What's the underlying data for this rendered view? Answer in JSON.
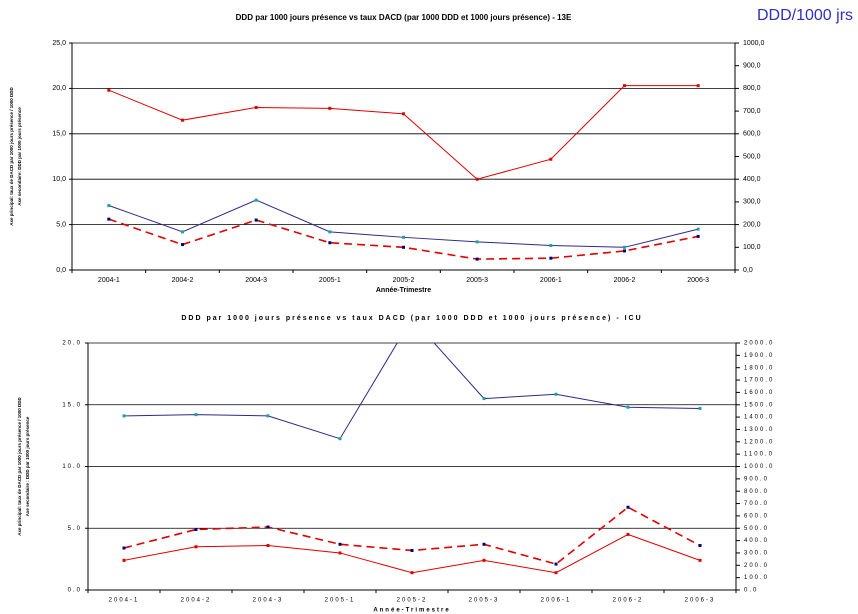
{
  "header": {
    "label": "DDD/1000 jrs"
  },
  "chart_data": [
    {
      "type": "line",
      "title": "DDD par 1000 jours présence vs taux DACD (par 1000 DDD et 1000 jours présence) - 13E",
      "xlabel": "Année-Trimestre",
      "ylabel": [
        "Axe principal: taux de DACD par 1000 jours présence / 1000 DDD",
        "Axe secondaire: DDD par 1000 jours présence"
      ],
      "categories": [
        "2004-1",
        "2004-2",
        "2004-3",
        "2005-1",
        "2005-2",
        "2005-3",
        "2006-1",
        "2006-2",
        "2006-3"
      ],
      "ylim": [
        0,
        25
      ],
      "yticks": [
        {
          "value": 0,
          "label": "0,0"
        },
        {
          "value": 5,
          "label": "5,0"
        },
        {
          "value": 10,
          "label": "10,0"
        },
        {
          "value": 15,
          "label": "15,0"
        },
        {
          "value": 20,
          "label": "20,0"
        },
        {
          "value": 25,
          "label": "25,0"
        }
      ],
      "y2lim": [
        0,
        1000
      ],
      "y2ticks": [
        {
          "value": 0,
          "label": "0,0"
        },
        {
          "value": 100,
          "label": "100,0"
        },
        {
          "value": 200,
          "label": "200,0"
        },
        {
          "value": 300,
          "label": "300,0"
        },
        {
          "value": 400,
          "label": "400,0"
        },
        {
          "value": 500,
          "label": "500,0"
        },
        {
          "value": 600,
          "label": "600,0"
        },
        {
          "value": 700,
          "label": "700,0"
        },
        {
          "value": 800,
          "label": "800,0"
        },
        {
          "value": 900,
          "label": "900,0"
        },
        {
          "value": 1000,
          "label": "1000,0"
        }
      ],
      "grid": true,
      "series": [
        {
          "color": "#e00000",
          "marker_color": "#e00000",
          "dashed": false,
          "values": [
            19.8,
            16.5,
            17.9,
            17.8,
            17.2,
            10.0,
            12.2,
            20.3,
            20.3
          ]
        },
        {
          "color": "#e00000",
          "marker_color": "#000080",
          "dashed": true,
          "values": [
            5.6,
            2.8,
            5.5,
            3.0,
            2.5,
            1.2,
            1.3,
            2.1,
            3.7
          ]
        },
        {
          "color": "#2a2a8a",
          "marker_color": "#20a0a0",
          "dashed": false,
          "axis": "y2",
          "values": [
            284,
            168,
            308,
            168,
            144,
            124,
            108,
            100,
            180
          ]
        }
      ]
    },
    {
      "type": "line",
      "title": "DDD par 1000 jours présence vs taux DACD (par 1000 DDD et 1000 jours présence) - ICU",
      "xlabel": "Année-Trimestre",
      "ylabel": [
        "Axe principal: taux de DACD par 1000 jours présence / 1000 DDD",
        "Axe secondaire : DDD par 1000 jours présence"
      ],
      "categories": [
        "2004-1",
        "2004-2",
        "2004-3",
        "2005-1",
        "2005-2",
        "2005-3",
        "2006-1",
        "2006-2",
        "2006-3"
      ],
      "ylim": [
        0,
        20
      ],
      "yticks": [
        {
          "value": 0,
          "label": "0.0"
        },
        {
          "value": 5,
          "label": "5.0"
        },
        {
          "value": 10,
          "label": "10.0"
        },
        {
          "value": 15,
          "label": "15.0"
        },
        {
          "value": 20,
          "label": "20.0"
        }
      ],
      "y2lim": [
        0,
        2000
      ],
      "y2ticks": [
        {
          "value": 0,
          "label": "0.0"
        },
        {
          "value": 100,
          "label": "100.0"
        },
        {
          "value": 200,
          "label": "200.0"
        },
        {
          "value": 300,
          "label": "300.0"
        },
        {
          "value": 400,
          "label": "400.0"
        },
        {
          "value": 500,
          "label": "500.0"
        },
        {
          "value": 600,
          "label": "600.0"
        },
        {
          "value": 700,
          "label": "700.0"
        },
        {
          "value": 800,
          "label": "800.0"
        },
        {
          "value": 900,
          "label": "900.0"
        },
        {
          "value": 1000,
          "label": "1000.0"
        },
        {
          "value": 1100,
          "label": "1100.0"
        },
        {
          "value": 1200,
          "label": "1200.0"
        },
        {
          "value": 1300,
          "label": "1300.0"
        },
        {
          "value": 1400,
          "label": "1400.0"
        },
        {
          "value": 1500,
          "label": "1500.0"
        },
        {
          "value": 1600,
          "label": "1600.0"
        },
        {
          "value": 1700,
          "label": "1700.0"
        },
        {
          "value": 1800,
          "label": "1800.0"
        },
        {
          "value": 1900,
          "label": "1900.0"
        },
        {
          "value": 2000,
          "label": "2000.0"
        }
      ],
      "grid": true,
      "series": [
        {
          "color": "#2a2a8a",
          "marker_color": "#20a0a0",
          "dashed": false,
          "axis": "y2",
          "values": [
            1410,
            1420,
            1410,
            1225,
            2200,
            1550,
            1585,
            1480,
            1470
          ]
        },
        {
          "color": "#e00000",
          "marker_color": "#000080",
          "dashed": true,
          "values": [
            3.4,
            4.9,
            5.1,
            3.7,
            3.2,
            3.7,
            2.1,
            6.7,
            3.6
          ]
        },
        {
          "color": "#e00000",
          "marker_color": "#e00000",
          "dashed": false,
          "values": [
            2.4,
            3.5,
            3.6,
            3.0,
            1.4,
            2.4,
            1.4,
            4.5,
            2.4
          ]
        }
      ]
    }
  ]
}
